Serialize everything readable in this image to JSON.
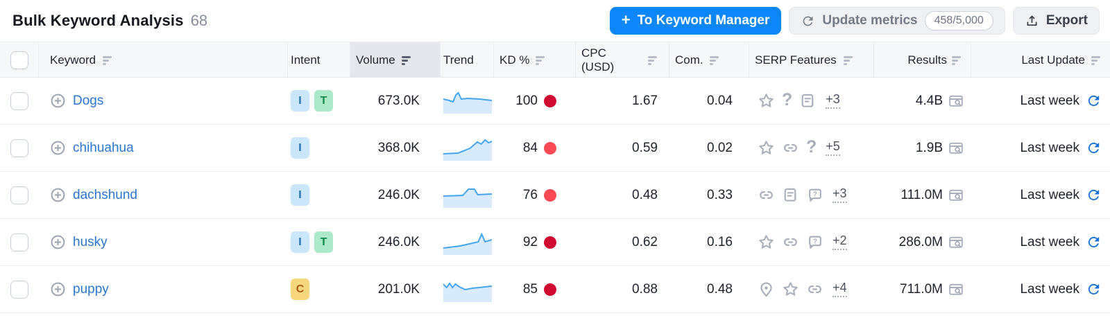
{
  "header": {
    "title": "Bulk Keyword Analysis",
    "count": "68",
    "actions": {
      "to_keyword_manager": "To Keyword Manager",
      "update_metrics": "Update metrics",
      "update_quota": "458/5,000",
      "export": "Export"
    }
  },
  "table": {
    "columns": [
      {
        "label": "Keyword",
        "sortable": true,
        "active": false
      },
      {
        "label": "Intent",
        "sortable": false,
        "active": false
      },
      {
        "label": "Volume",
        "sortable": true,
        "active": true
      },
      {
        "label": "Trend",
        "sortable": false,
        "active": false
      },
      {
        "label": "KD %",
        "sortable": true,
        "active": false
      },
      {
        "label": "CPC (USD)",
        "sortable": true,
        "active": false
      },
      {
        "label": "Com.",
        "sortable": true,
        "active": false
      },
      {
        "label": "SERP Features",
        "sortable": true,
        "active": false
      },
      {
        "label": "Results",
        "sortable": true,
        "active": false
      },
      {
        "label": "Last Update",
        "sortable": true,
        "active": false
      }
    ],
    "rows": [
      {
        "keyword": "Dogs",
        "intents": [
          {
            "label": "I"
          },
          {
            "label": "T"
          }
        ],
        "volume": "673.0K",
        "trend": [
          [
            0,
            15
          ],
          [
            12,
            17
          ],
          [
            20,
            19
          ],
          [
            26,
            9
          ],
          [
            31,
            6
          ],
          [
            37,
            15
          ],
          [
            50,
            14
          ],
          [
            75,
            15
          ],
          [
            100,
            17
          ]
        ],
        "kd": "100",
        "kd_level": "very-hard",
        "cpc": "1.67",
        "com": "0.04",
        "serp_features": [
          "star",
          "question",
          "snippet"
        ],
        "serp_more": "+3",
        "results": "4.4B",
        "last_update": "Last week"
      },
      {
        "keyword": "chihuahua",
        "intents": [
          {
            "label": "I"
          }
        ],
        "volume": "368.0K",
        "trend": [
          [
            0,
            26
          ],
          [
            30,
            25
          ],
          [
            55,
            18
          ],
          [
            70,
            9
          ],
          [
            78,
            12
          ],
          [
            86,
            6
          ],
          [
            93,
            10
          ],
          [
            100,
            8
          ]
        ],
        "kd": "84",
        "kd_level": "hard",
        "cpc": "0.59",
        "com": "0.02",
        "serp_features": [
          "star",
          "link",
          "question"
        ],
        "serp_more": "+5",
        "results": "1.9B",
        "last_update": "Last week"
      },
      {
        "keyword": "dachshund",
        "intents": [
          {
            "label": "I"
          }
        ],
        "volume": "246.0K",
        "trend": [
          [
            0,
            19
          ],
          [
            40,
            18
          ],
          [
            52,
            9
          ],
          [
            64,
            9
          ],
          [
            71,
            17
          ],
          [
            100,
            16
          ]
        ],
        "kd": "76",
        "kd_level": "hard",
        "cpc": "0.48",
        "com": "0.33",
        "serp_features": [
          "link",
          "snippet",
          "question-bubble"
        ],
        "serp_more": "+3",
        "results": "111.0M",
        "last_update": "Last week"
      },
      {
        "keyword": "husky",
        "intents": [
          {
            "label": "I"
          },
          {
            "label": "T"
          }
        ],
        "volume": "246.0K",
        "trend": [
          [
            0,
            26
          ],
          [
            35,
            23
          ],
          [
            60,
            19
          ],
          [
            72,
            17
          ],
          [
            79,
            6
          ],
          [
            86,
            17
          ],
          [
            100,
            14
          ]
        ],
        "kd": "92",
        "kd_level": "very-hard",
        "cpc": "0.62",
        "com": "0.16",
        "serp_features": [
          "star",
          "link",
          "question-bubble"
        ],
        "serp_more": "+2",
        "results": "286.0M",
        "last_update": "Last week"
      },
      {
        "keyword": "puppy",
        "intents": [
          {
            "label": "C"
          }
        ],
        "volume": "201.0K",
        "trend": [
          [
            0,
            10
          ],
          [
            7,
            15
          ],
          [
            13,
            9
          ],
          [
            19,
            15
          ],
          [
            25,
            10
          ],
          [
            33,
            14
          ],
          [
            45,
            18
          ],
          [
            60,
            16
          ],
          [
            100,
            13
          ]
        ],
        "kd": "85",
        "kd_level": "very-hard",
        "cpc": "0.88",
        "com": "0.48",
        "serp_features": [
          "location",
          "star",
          "link"
        ],
        "serp_more": "+4",
        "results": "711.0M",
        "last_update": "Last week"
      }
    ]
  },
  "colors": {
    "primary": "#0d87f8",
    "link": "#2a77d4",
    "kd_very_hard": "#d00b31",
    "kd_hard": "#fb4a55",
    "intent_i_bg": "#c9e6fa",
    "intent_i_text": "#2070b7",
    "intent_t_bg": "#abe9c8",
    "intent_t_text": "#11884e",
    "intent_c_bg": "#f6d77d",
    "intent_c_text": "#aa5e10",
    "trend_line": "#43a5f2",
    "trend_fill": "#d7ebfc",
    "refresh_blue": "#1470d6",
    "icon_gray": "#a8aebb"
  }
}
